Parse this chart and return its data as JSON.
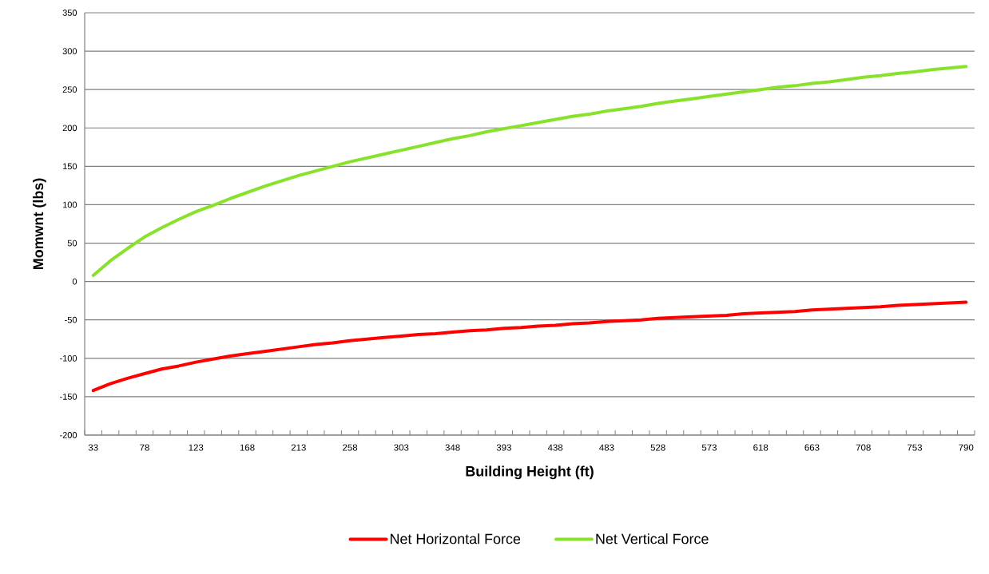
{
  "chart_data": {
    "type": "line",
    "xlabel": "Building Height (ft)",
    "ylabel": "Momwnt (lbs)",
    "categories": [
      "33",
      null,
      null,
      "78",
      null,
      null,
      "123",
      null,
      null,
      "168",
      null,
      null,
      "213",
      null,
      null,
      "258",
      null,
      null,
      "303",
      null,
      null,
      "348",
      null,
      null,
      "393",
      null,
      null,
      "438",
      null,
      null,
      "483",
      null,
      null,
      "528",
      null,
      null,
      "573",
      null,
      null,
      "618",
      null,
      null,
      "663",
      null,
      null,
      "708",
      null,
      null,
      "753",
      null,
      null,
      "790"
    ],
    "series": [
      {
        "name": "Net Horizontal Force",
        "color": "#ff0000",
        "values": [
          -142,
          -133,
          -126,
          -120,
          -114,
          -110,
          -105,
          -101,
          -97,
          -94,
          -91,
          -88,
          -85,
          -82,
          -80,
          -77,
          -75,
          -73,
          -71,
          -69,
          -68,
          -66,
          -64,
          -63,
          -61,
          -60,
          -58,
          -57,
          -55,
          -54,
          -52,
          -51,
          -50,
          -48,
          -47,
          -46,
          -45,
          -44,
          -42,
          -41,
          -40,
          -39,
          -37,
          -36,
          -35,
          -34,
          -33,
          -31,
          -30,
          -29,
          -28,
          -27
        ]
      },
      {
        "name": "Net Vertical Force",
        "color": "#88e22c",
        "values": [
          8,
          27,
          43,
          58,
          70,
          81,
          91,
          99,
          108,
          116,
          124,
          131,
          138,
          144,
          150,
          156,
          161,
          166,
          171,
          176,
          181,
          186,
          190,
          195,
          199,
          203,
          207,
          211,
          215,
          218,
          222,
          225,
          228,
          232,
          235,
          238,
          241,
          244,
          247,
          250,
          253,
          255,
          258,
          260,
          263,
          266,
          268,
          271,
          273,
          276,
          278,
          280
        ]
      }
    ],
    "ylim": [
      -200,
      350
    ],
    "yticks": [
      -200,
      -150,
      -100,
      -50,
      0,
      50,
      100,
      150,
      200,
      250,
      300,
      350
    ],
    "grid": "y",
    "legend": "bottom"
  }
}
